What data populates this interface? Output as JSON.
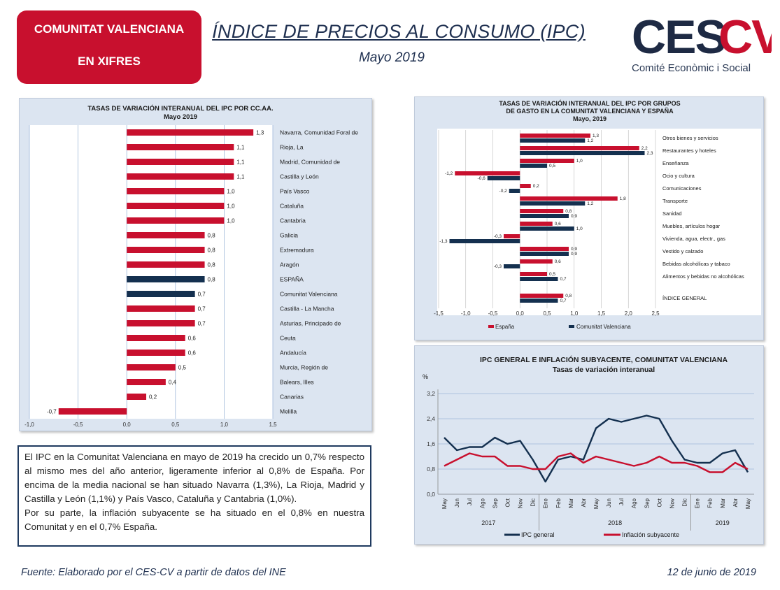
{
  "header": {
    "badge_line1": "COMUNITAT VALENCIANA",
    "badge_line2": "EN XIFRES",
    "title": "ÍNDICE DE PRECIOS AL CONSUMO (IPC)",
    "subtitle": "Mayo 2019",
    "logo_text_a": "CES",
    "logo_text_b": "CV",
    "logo_caption": "Comité Econòmic i Social"
  },
  "colors": {
    "red": "#c8102e",
    "navy": "#14304f",
    "panel_bg": "#dce5f1",
    "grid": "#9fb7d9"
  },
  "chart_data": [
    {
      "type": "bar",
      "orientation": "horizontal",
      "title": "TASAS DE VARIACIÓN INTERANUAL DEL IPC POR CC.AA.",
      "subtitle": "Mayo 2019",
      "categories": [
        "Navarra, Comunidad Foral de",
        "Rioja, La",
        "Madrid, Comunidad de",
        "Castilla y León",
        "País Vasco",
        "Cataluña",
        "Cantabria",
        "Galicia",
        "Extremadura",
        "Aragón",
        "ESPAÑA",
        "Comunitat Valenciana",
        "Castilla - La Mancha",
        "Asturias, Principado de",
        "Ceuta",
        "Andalucía",
        "Murcia, Región de",
        "Balears, Illes",
        "Canarias",
        "Melilla"
      ],
      "values": [
        1.3,
        1.1,
        1.1,
        1.1,
        1.0,
        1.0,
        1.0,
        0.8,
        0.8,
        0.8,
        0.8,
        0.7,
        0.7,
        0.7,
        0.6,
        0.6,
        0.5,
        0.4,
        0.2,
        -0.7
      ],
      "value_labels": [
        "1,3",
        "1,1",
        "1,1",
        "1,1",
        "1,0",
        "1,0",
        "1,0",
        "0,8",
        "0,8",
        "0,8",
        "0,8",
        "0,7",
        "0,7",
        "0,7",
        "0,6",
        "0,6",
        "0,5",
        "0,4",
        "0,2",
        "-0,7"
      ],
      "highlight": [
        "ESPAÑA",
        "Comunitat Valenciana"
      ],
      "xlim": [
        -1.0,
        1.5
      ],
      "xticks": [
        -1.0,
        -0.5,
        0.0,
        0.5,
        1.0,
        1.5
      ],
      "xtick_labels": [
        "-1,0",
        "-0,5",
        "0,0",
        "0,5",
        "1,0",
        "1,5"
      ],
      "grid": true
    },
    {
      "type": "bar",
      "orientation": "horizontal",
      "title": "TASAS DE VARIACIÓN INTERANUAL DEL IPC POR GRUPOS",
      "title_line2": "DE GASTO EN LA COMUNITAT VALENCIANA Y ESPAÑA",
      "subtitle": "Mayo, 2019",
      "categories": [
        "Otros bienes y servicios",
        "Restaurantes y hoteles",
        "Enseñanza",
        "Ocio y cultura",
        "Comunicaciones",
        "Transporte",
        "Sanidad",
        "Muebles, artículos hogar",
        "Vivienda, agua, electr., gas",
        "Vestido y calzado",
        "Bebidas alcohólicas y tabaco",
        "Alimentos y bebidas no alcohólicas",
        "ÍNDICE GENERAL"
      ],
      "series": [
        {
          "name": "España",
          "values": [
            1.3,
            2.2,
            1.0,
            -1.2,
            0.2,
            1.8,
            0.8,
            0.6,
            -0.3,
            0.9,
            0.6,
            0.5,
            0.8
          ],
          "labels": [
            "1,3",
            "2,2",
            "1,0",
            "-1,2",
            "0,2",
            "1,8",
            "0,8",
            "0,6",
            "-0,3",
            "0,9",
            "0,6",
            "0,5",
            "0,8"
          ]
        },
        {
          "name": "Comunitat Valenciana",
          "values": [
            1.2,
            2.3,
            0.5,
            -0.6,
            -0.2,
            1.2,
            0.9,
            1.0,
            -1.3,
            0.9,
            -0.3,
            0.7,
            0.7
          ],
          "labels": [
            "1,2",
            "2,3",
            "0,5",
            "-0,6",
            "-0,2",
            "1,2",
            "0,9",
            "1,0",
            "-1,3",
            "0,9",
            "-0,3",
            "0,7",
            "0,7"
          ]
        }
      ],
      "xlim": [
        -1.5,
        2.5
      ],
      "xticks": [
        -1.5,
        -1.0,
        -0.5,
        0.0,
        0.5,
        1.0,
        1.5,
        2.0,
        2.5
      ],
      "xtick_labels": [
        "-1,5",
        "-1,0",
        "-0,5",
        "0,0",
        "0,5",
        "1,0",
        "1,5",
        "2,0",
        "2,5"
      ],
      "legend_position": "bottom"
    },
    {
      "type": "line",
      "title": "IPC GENERAL E INFLACIÓN SUBYACENTE, COMUNITAT VALENCIANA",
      "subtitle": "Tasas de variación interanual",
      "ylabel": "%",
      "x": [
        "May",
        "Jun",
        "Jul",
        "Ago",
        "Sep",
        "Oct",
        "Nov",
        "Dic",
        "Ene",
        "Feb",
        "Mar",
        "Abr",
        "May",
        "Jun",
        "Jul",
        "Ago",
        "Sep",
        "Oct",
        "Nov",
        "Dic",
        "Ene",
        "Feb",
        "Mar",
        "Abr",
        "May"
      ],
      "year_groups": [
        {
          "label": "2017",
          "start": 0,
          "end": 7
        },
        {
          "label": "2018",
          "start": 8,
          "end": 19
        },
        {
          "label": "2019",
          "start": 20,
          "end": 24
        }
      ],
      "series": [
        {
          "name": "IPC general",
          "color": "#14304f",
          "values": [
            1.8,
            1.4,
            1.5,
            1.5,
            1.8,
            1.6,
            1.7,
            1.1,
            0.4,
            1.1,
            1.2,
            1.1,
            2.1,
            2.4,
            2.3,
            2.4,
            2.5,
            2.4,
            1.7,
            1.1,
            1.0,
            1.0,
            1.3,
            1.4,
            0.7
          ]
        },
        {
          "name": "Inflación subyacente",
          "color": "#c8102e",
          "values": [
            0.9,
            1.1,
            1.3,
            1.2,
            1.2,
            0.9,
            0.9,
            0.8,
            0.8,
            1.2,
            1.3,
            1.0,
            1.2,
            1.1,
            1.0,
            0.9,
            1.0,
            1.2,
            1.0,
            1.0,
            0.9,
            0.7,
            0.7,
            1.0,
            0.8
          ]
        }
      ],
      "ylim": [
        0.0,
        3.2
      ],
      "yticks": [
        0.0,
        0.8,
        1.6,
        2.4,
        3.2
      ],
      "ytick_labels": [
        "0,0",
        "0,8",
        "1,6",
        "2,4",
        "3,2"
      ],
      "legend_position": "bottom",
      "grid": true
    }
  ],
  "text_block": {
    "paragraph1": "El IPC en la Comunitat Valenciana en mayo de 2019 ha crecido un 0,7% respecto al mismo mes del año anterior, ligeramente inferior al 0,8% de España. Por encima de la media nacional se han situado Navarra (1,3%), La Rioja, Madrid y Castilla y León (1,1%) y País Vasco, Cataluña y Cantabria (1,0%).",
    "paragraph2": "Por su parte, la inflación subyacente se ha situado en el 0,8% en nuestra Comunitat y en el 0,7% España."
  },
  "footer": {
    "source": "Fuente: Elaborado por el CES-CV a partir de datos del INE",
    "date": "12 de junio de 2019"
  }
}
